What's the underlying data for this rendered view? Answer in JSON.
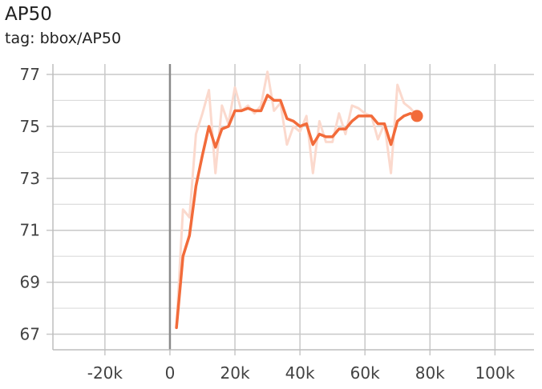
{
  "title": "AP50",
  "subtitle": "tag: bbox/AP50",
  "chart_data": {
    "type": "line",
    "title": "AP50",
    "xlabel": "",
    "ylabel": "",
    "xlim": [
      -36000,
      112000
    ],
    "ylim": [
      66.4,
      77.4
    ],
    "x_ticks": [
      -20000,
      0,
      20000,
      40000,
      60000,
      80000,
      100000
    ],
    "x_tick_labels": [
      "-20k",
      "0",
      "20k",
      "40k",
      "60k",
      "80k",
      "100k"
    ],
    "y_ticks": [
      67,
      69,
      71,
      73,
      75,
      77
    ],
    "y_tick_labels": [
      "67",
      "69",
      "71",
      "73",
      "75",
      "77"
    ],
    "grid": true,
    "colors": {
      "smoothed": "#f26b3a",
      "raw": "#fbd9cd",
      "grid": "#c8c8c8",
      "zero_line": "#8a8a8a"
    },
    "series": [
      {
        "role": "raw",
        "x": [
          2000,
          4000,
          6000,
          8000,
          10000,
          12000,
          14000,
          16000,
          18000,
          20000,
          22000,
          24000,
          26000,
          28000,
          30000,
          32000,
          34000,
          36000,
          38000,
          40000,
          42000,
          44000,
          46000,
          48000,
          50000,
          52000,
          54000,
          56000,
          58000,
          60000,
          62000,
          64000,
          66000,
          68000,
          70000,
          72000,
          74000,
          76000
        ],
        "y": [
          67.3,
          71.8,
          71.5,
          74.7,
          75.5,
          76.4,
          73.2,
          75.8,
          75.1,
          76.5,
          75.6,
          75.8,
          75.5,
          75.8,
          77.1,
          75.6,
          75.9,
          74.3,
          75.0,
          74.8,
          75.4,
          73.2,
          75.2,
          74.4,
          74.4,
          75.5,
          74.7,
          75.8,
          75.7,
          75.5,
          75.4,
          74.5,
          75.1,
          73.2,
          76.6,
          75.9,
          75.7,
          75.4
        ]
      },
      {
        "role": "smoothed",
        "x": [
          2000,
          4000,
          6000,
          8000,
          10000,
          12000,
          14000,
          16000,
          18000,
          20000,
          22000,
          24000,
          26000,
          28000,
          30000,
          32000,
          34000,
          36000,
          38000,
          40000,
          42000,
          44000,
          46000,
          48000,
          50000,
          52000,
          54000,
          56000,
          58000,
          60000,
          62000,
          64000,
          66000,
          68000,
          70000,
          72000,
          74000,
          76000
        ],
        "y": [
          67.25,
          70.0,
          70.8,
          72.7,
          73.9,
          75.0,
          74.2,
          74.9,
          75.0,
          75.6,
          75.6,
          75.7,
          75.6,
          75.6,
          76.2,
          76.0,
          76.0,
          75.3,
          75.2,
          75.0,
          75.1,
          74.3,
          74.7,
          74.6,
          74.6,
          74.9,
          74.9,
          75.2,
          75.4,
          75.4,
          75.4,
          75.1,
          75.1,
          74.3,
          75.2,
          75.4,
          75.5,
          75.4
        ]
      }
    ]
  }
}
